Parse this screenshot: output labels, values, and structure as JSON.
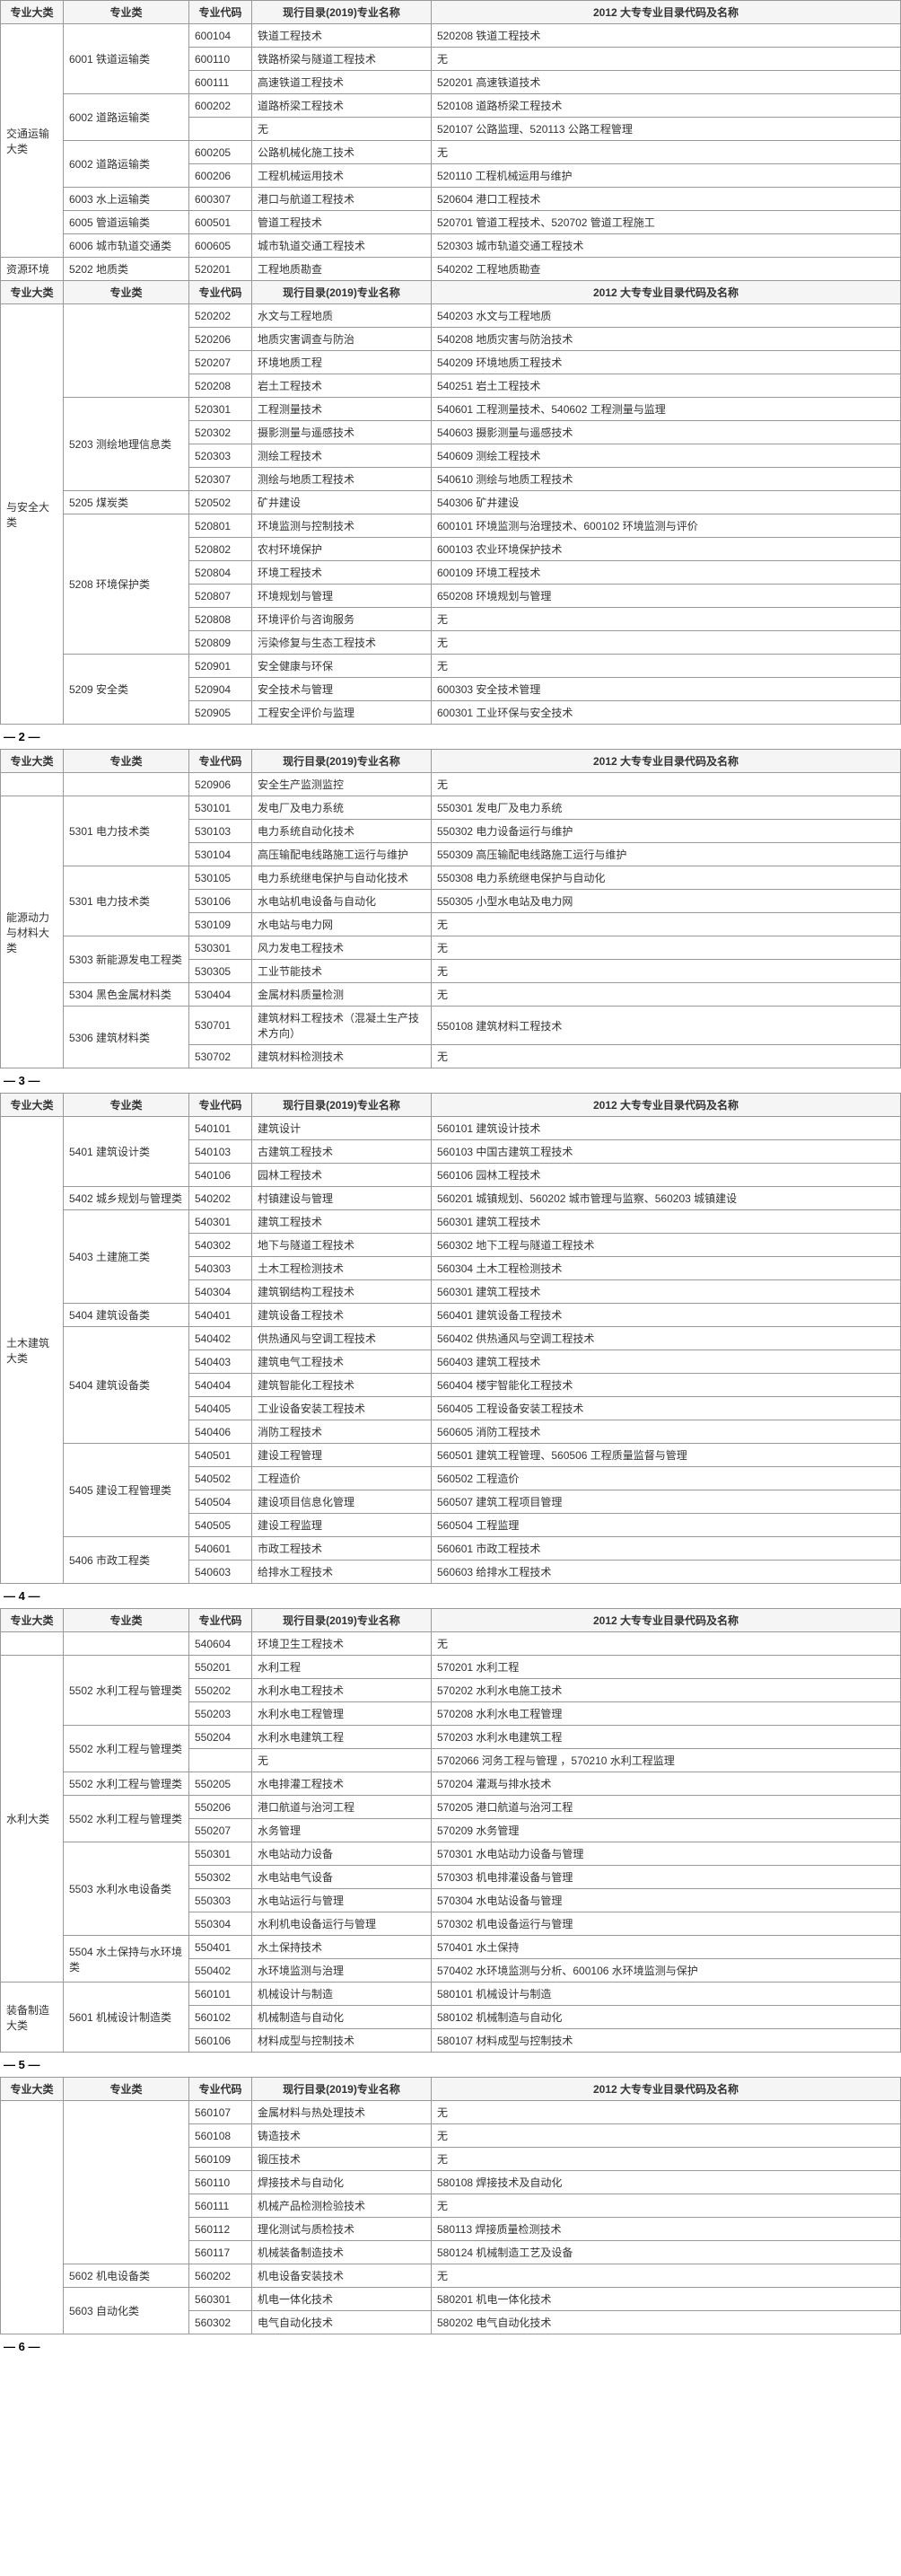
{
  "headers": {
    "major": "专业大类",
    "cat": "专业类",
    "code": "专业代码",
    "current": "现行目录(2019)专业名称",
    "old": "2012 大专专业目录代码及名称"
  },
  "pageNums": {
    "p2": "— 2 —",
    "p3": "— 3 —",
    "p4": "— 4 —",
    "p5": "— 5 —",
    "p6": "— 6 —"
  },
  "sections": [
    {
      "major": "交通运输大类",
      "groups": [
        {
          "cat": "6001 铁道运输类",
          "rows": [
            {
              "code": "600104",
              "cur": "铁道工程技术",
              "old": "520208 铁道工程技术"
            },
            {
              "code": "600110",
              "cur": "铁路桥梁与隧道工程技术",
              "old": "无"
            },
            {
              "code": "600111",
              "cur": "高速铁道工程技术",
              "old": "520201 高速铁道技术"
            }
          ]
        },
        {
          "cat": "6002 道路运输类",
          "rows": [
            {
              "code": "600202",
              "cur": "道路桥梁工程技术",
              "old": "520108 道路桥梁工程技术"
            },
            {
              "code": "",
              "cur": "无",
              "old": "520107 公路监理、520113 公路工程管理"
            }
          ]
        },
        {
          "cat": "6002 道路运输类",
          "rows": [
            {
              "code": "600205",
              "cur": "公路机械化施工技术",
              "old": "无"
            },
            {
              "code": "600206",
              "cur": "工程机械运用技术",
              "old": "520110 工程机械运用与维护"
            }
          ]
        },
        {
          "cat": "6003 水上运输类",
          "rows": [
            {
              "code": "600307",
              "cur": "港口与航道工程技术",
              "old": "520604 港口工程技术"
            }
          ]
        },
        {
          "cat": "6005 管道运输类",
          "rows": [
            {
              "code": "600501",
              "cur": "管道工程技术",
              "old": "520701 管道工程技术、520702 管道工程施工"
            }
          ]
        },
        {
          "cat": "6006 城市轨道交通类",
          "rows": [
            {
              "code": "600605",
              "cur": "城市轨道交通工程技术",
              "old": "520303 城市轨道交通工程技术"
            }
          ]
        }
      ]
    },
    {
      "major": "资源环境",
      "groups": [
        {
          "cat": "5202 地质类",
          "rows": [
            {
              "code": "520201",
              "cur": "工程地质勘查",
              "old": "540202 工程地质勘查"
            }
          ]
        }
      ]
    },
    {
      "major": "与安全大类",
      "headerRepeat": true,
      "groups": [
        {
          "cat": "",
          "rows": [
            {
              "code": "520202",
              "cur": "水文与工程地质",
              "old": "540203 水文与工程地质"
            },
            {
              "code": "520206",
              "cur": "地质灾害调查与防治",
              "old": "540208 地质灾害与防治技术"
            },
            {
              "code": "520207",
              "cur": "环境地质工程",
              "old": "540209 环境地质工程技术"
            },
            {
              "code": "520208",
              "cur": "岩土工程技术",
              "old": "540251 岩土工程技术"
            }
          ]
        },
        {
          "cat": "5203 测绘地理信息类",
          "rows": [
            {
              "code": "520301",
              "cur": "工程测量技术",
              "old": "540601 工程测量技术、540602 工程测量与监理"
            },
            {
              "code": "520302",
              "cur": "摄影测量与遥感技术",
              "old": "540603 摄影测量与遥感技术"
            },
            {
              "code": "520303",
              "cur": "测绘工程技术",
              "old": "540609 测绘工程技术"
            },
            {
              "code": "520307",
              "cur": "测绘与地质工程技术",
              "old": "540610 测绘与地质工程技术"
            }
          ]
        },
        {
          "cat": "5205 煤炭类",
          "rows": [
            {
              "code": "520502",
              "cur": "矿井建设",
              "old": "540306 矿井建设"
            }
          ]
        },
        {
          "cat": "5208 环境保护类",
          "rows": [
            {
              "code": "520801",
              "cur": "环境监测与控制技术",
              "old": "600101 环境监测与治理技术、600102 环境监测与评价"
            },
            {
              "code": "520802",
              "cur": "农村环境保护",
              "old": "600103 农业环境保护技术"
            },
            {
              "code": "520804",
              "cur": "环境工程技术",
              "old": "600109 环境工程技术"
            },
            {
              "code": "520807",
              "cur": "环境规划与管理",
              "old": "650208 环境规划与管理"
            },
            {
              "code": "520808",
              "cur": "环境评价与咨询服务",
              "old": "无"
            },
            {
              "code": "520809",
              "cur": "污染修复与生态工程技术",
              "old": "无"
            }
          ]
        },
        {
          "cat": "5209 安全类",
          "rows": [
            {
              "code": "520901",
              "cur": "安全健康与环保",
              "old": "无"
            },
            {
              "code": "520904",
              "cur": "安全技术与管理",
              "old": "600303 安全技术管理"
            },
            {
              "code": "520905",
              "cur": "工程安全评价与监理",
              "old": "600301 工业环保与安全技术"
            }
          ]
        }
      ]
    }
  ],
  "section3": {
    "rows": [
      {
        "major": "",
        "cat": "",
        "code": "520906",
        "cur": "安全生产监测监控",
        "old": "无"
      }
    ],
    "major": "能源动力与材料大类",
    "groups": [
      {
        "cat": "5301 电力技术类",
        "rows": [
          {
            "code": "530101",
            "cur": "发电厂及电力系统",
            "old": "550301 发电厂及电力系统"
          },
          {
            "code": "530103",
            "cur": "电力系统自动化技术",
            "old": "550302 电力设备运行与维护"
          },
          {
            "code": "530104",
            "cur": "高压输配电线路施工运行与维护",
            "old": "550309 高压输配电线路施工运行与维护"
          }
        ]
      },
      {
        "cat": "5301 电力技术类",
        "rows": [
          {
            "code": "530105",
            "cur": "电力系统继电保护与自动化技术",
            "old": "550308 电力系统继电保护与自动化"
          },
          {
            "code": "530106",
            "cur": "水电站机电设备与自动化",
            "old": "550305 小型水电站及电力网"
          },
          {
            "code": "530109",
            "cur": "水电站与电力网",
            "old": "无"
          }
        ]
      },
      {
        "cat": "5303 新能源发电工程类",
        "rows": [
          {
            "code": "530301",
            "cur": "风力发电工程技术",
            "old": "无"
          },
          {
            "code": "530305",
            "cur": "工业节能技术",
            "old": "无"
          }
        ]
      },
      {
        "cat": "5304 黑色金属材料类",
        "rows": [
          {
            "code": "530404",
            "cur": "金属材料质量检测",
            "old": "无"
          }
        ]
      },
      {
        "cat": "5306 建筑材料类",
        "rows": [
          {
            "code": "530701",
            "cur": "建筑材料工程技术（混凝土生产技术方向）",
            "old": "550108 建筑材料工程技术"
          },
          {
            "code": "530702",
            "cur": "建筑材料检测技术",
            "old": "无"
          }
        ]
      }
    ]
  },
  "section4": {
    "major": "土木建筑大类",
    "groups": [
      {
        "cat": "5401 建筑设计类",
        "rows": [
          {
            "code": "540101",
            "cur": "建筑设计",
            "old": "560101 建筑设计技术"
          },
          {
            "code": "540103",
            "cur": "古建筑工程技术",
            "old": "560103 中国古建筑工程技术"
          },
          {
            "code": "540106",
            "cur": "园林工程技术",
            "old": "560106 园林工程技术"
          }
        ]
      },
      {
        "cat": "5402 城乡规划与管理类",
        "rows": [
          {
            "code": "540202",
            "cur": "村镇建设与管理",
            "old": "560201 城镇规划、560202 城市管理与监察、560203 城镇建设"
          }
        ]
      },
      {
        "cat": "5403 土建施工类",
        "rows": [
          {
            "code": "540301",
            "cur": "建筑工程技术",
            "old": "560301 建筑工程技术"
          },
          {
            "code": "540302",
            "cur": "地下与隧道工程技术",
            "old": "560302 地下工程与隧道工程技术"
          },
          {
            "code": "540303",
            "cur": "土木工程检测技术",
            "old": "560304 土木工程检测技术"
          },
          {
            "code": "540304",
            "cur": "建筑钢结构工程技术",
            "old": "560301 建筑工程技术"
          }
        ]
      },
      {
        "cat": "5404 建筑设备类",
        "rows": [
          {
            "code": "540401",
            "cur": "建筑设备工程技术",
            "old": "560401 建筑设备工程技术"
          }
        ]
      },
      {
        "cat": "5404 建筑设备类",
        "rows": [
          {
            "code": "540402",
            "cur": "供热通风与空调工程技术",
            "old": "560402 供热通风与空调工程技术"
          },
          {
            "code": "540403",
            "cur": "建筑电气工程技术",
            "old": "560403 建筑工程技术"
          },
          {
            "code": "540404",
            "cur": "建筑智能化工程技术",
            "old": "560404 楼宇智能化工程技术"
          },
          {
            "code": "540405",
            "cur": "工业设备安装工程技术",
            "old": "560405 工程设备安装工程技术"
          },
          {
            "code": "540406",
            "cur": "消防工程技术",
            "old": "560605 消防工程技术"
          }
        ]
      },
      {
        "cat": "5405 建设工程管理类",
        "rows": [
          {
            "code": "540501",
            "cur": "建设工程管理",
            "old": "560501 建筑工程管理、560506 工程质量监督与管理"
          },
          {
            "code": "540502",
            "cur": "工程造价",
            "old": "560502 工程造价"
          },
          {
            "code": "540504",
            "cur": "建设项目信息化管理",
            "old": "560507 建筑工程项目管理"
          },
          {
            "code": "540505",
            "cur": "建设工程监理",
            "old": "560504 工程监理"
          }
        ]
      },
      {
        "cat": "5406 市政工程类",
        "rows": [
          {
            "code": "540601",
            "cur": "市政工程技术",
            "old": "560601 市政工程技术"
          },
          {
            "code": "540603",
            "cur": "给排水工程技术",
            "old": "560603 给排水工程技术"
          }
        ]
      }
    ]
  },
  "section5": {
    "rows": [
      {
        "major": "",
        "cat": "",
        "code": "540604",
        "cur": "环境卫生工程技术",
        "old": "无"
      }
    ],
    "major": "水利大类",
    "groups": [
      {
        "cat": "5502 水利工程与管理类",
        "rows": [
          {
            "code": "550201",
            "cur": "水利工程",
            "old": "570201 水利工程"
          },
          {
            "code": "550202",
            "cur": "水利水电工程技术",
            "old": "570202 水利水电施工技术"
          },
          {
            "code": "550203",
            "cur": "水利水电工程管理",
            "old": "570208 水利水电工程管理"
          }
        ]
      },
      {
        "cat": "5502 水利工程与管理类",
        "rows": [
          {
            "code": "550204",
            "cur": "水利水电建筑工程",
            "old": "570203 水利水电建筑工程"
          },
          {
            "code": "",
            "cur": "无",
            "old": "5702066 河务工程与管理 ，570210 水利工程监理"
          }
        ]
      },
      {
        "cat": "5502 水利工程与管理类",
        "rows": [
          {
            "code": "550205",
            "cur": "水电排灌工程技术",
            "old": "570204 灌溉与排水技术"
          }
        ]
      },
      {
        "cat": "5502 水利工程与管理类",
        "rows": [
          {
            "code": "550206",
            "cur": "港口航道与治河工程",
            "old": "570205 港口航道与治河工程"
          },
          {
            "code": "550207",
            "cur": "水务管理",
            "old": "570209 水务管理"
          }
        ]
      },
      {
        "cat": "5503 水利水电设备类",
        "rows": [
          {
            "code": "550301",
            "cur": "水电站动力设备",
            "old": "570301 水电站动力设备与管理"
          },
          {
            "code": "550302",
            "cur": "水电站电气设备",
            "old": "570303 机电排灌设备与管理"
          },
          {
            "code": "550303",
            "cur": "水电站运行与管理",
            "old": "570304 水电站设备与管理"
          },
          {
            "code": "550304",
            "cur": "水利机电设备运行与管理",
            "old": "570302 机电设备运行与管理"
          }
        ]
      },
      {
        "cat": "5504 水土保持与水环境类",
        "rows": [
          {
            "code": "550401",
            "cur": "水土保持技术",
            "old": "570401 水土保持"
          },
          {
            "code": "550402",
            "cur": "水环境监测与治理",
            "old": "570402 水环境监测与分析、600106 水环境监测与保护"
          }
        ]
      }
    ],
    "major2": "装备制造大类",
    "groups2": [
      {
        "cat": "5601 机械设计制造类",
        "rows": [
          {
            "code": "560101",
            "cur": "机械设计与制造",
            "old": "580101 机械设计与制造"
          },
          {
            "code": "560102",
            "cur": "机械制造与自动化",
            "old": "580102 机械制造与自动化"
          },
          {
            "code": "560106",
            "cur": "材料成型与控制技术",
            "old": "580107 材料成型与控制技术"
          }
        ]
      }
    ]
  },
  "section6": {
    "rows": [
      {
        "code": "560107",
        "cur": "金属材料与热处理技术",
        "old": "无"
      },
      {
        "code": "560108",
        "cur": "铸造技术",
        "old": "无"
      },
      {
        "code": "560109",
        "cur": "锻压技术",
        "old": "无"
      },
      {
        "code": "560110",
        "cur": "焊接技术与自动化",
        "old": "580108 焊接技术及自动化"
      },
      {
        "code": "560111",
        "cur": "机械产品检测检验技术",
        "old": "无"
      },
      {
        "code": "560112",
        "cur": "理化测试与质检技术",
        "old": "580113 焊接质量检测技术"
      },
      {
        "code": "560117",
        "cur": "机械装备制造技术",
        "old": "580124 机械制造工艺及设备"
      }
    ],
    "groups": [
      {
        "cat": "5602 机电设备类",
        "rows": [
          {
            "code": "560202",
            "cur": "机电设备安装技术",
            "old": "无"
          }
        ]
      },
      {
        "cat": "5603 自动化类",
        "rows": [
          {
            "code": "560301",
            "cur": "机电一体化技术",
            "old": "580201 机电一体化技术"
          },
          {
            "code": "560302",
            "cur": "电气自动化技术",
            "old": "580202 电气自动化技术"
          }
        ]
      }
    ]
  }
}
